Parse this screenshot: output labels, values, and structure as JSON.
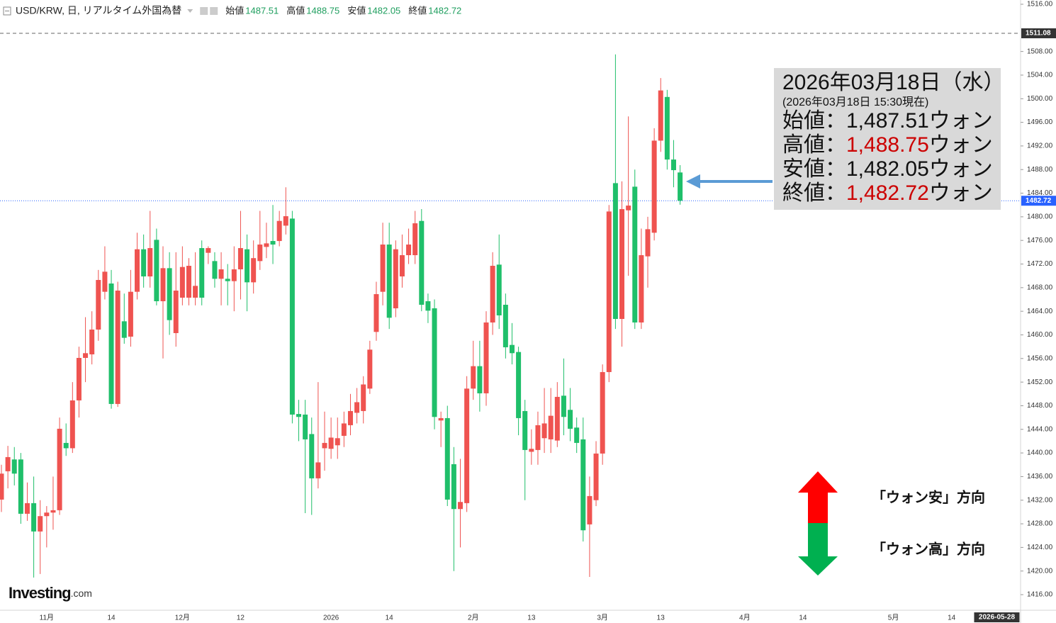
{
  "chart_data": {
    "type": "candlestick",
    "header": {
      "symbol": "USD/KRW, 日, リアルタイム外国為替",
      "ohlc": [
        {
          "label": "始値",
          "value": 1487.51
        },
        {
          "label": "高値",
          "value": 1488.75
        },
        {
          "label": "安値",
          "value": 1482.05
        },
        {
          "label": "終値",
          "value": 1482.72
        }
      ],
      "value_color": "#1e9e5e"
    },
    "up_color": "#ef5350",
    "down_color": "#1fbf6a",
    "categories": [
      null,
      null,
      null,
      null,
      null,
      null,
      null,
      "11月",
      null,
      null,
      null,
      null,
      null,
      null,
      null,
      null,
      null,
      "14",
      null,
      null,
      null,
      null,
      null,
      null,
      null,
      null,
      null,
      null,
      "12月",
      null,
      null,
      null,
      null,
      null,
      null,
      null,
      null,
      "12",
      null,
      null,
      null,
      null,
      null,
      null,
      null,
      null,
      null,
      null,
      null,
      null,
      null,
      "2026",
      null,
      null,
      null,
      null,
      null,
      null,
      null,
      null,
      "14",
      null,
      null,
      null,
      null,
      null,
      null,
      null,
      null,
      null,
      null,
      null,
      null,
      "2月",
      null,
      null,
      null,
      null,
      null,
      null,
      null,
      null,
      "13",
      null,
      null,
      null,
      null,
      null,
      null,
      null,
      null,
      null,
      null,
      "3月",
      null,
      null,
      null,
      null,
      null,
      null,
      null,
      null,
      "13",
      null,
      null,
      null,
      null,
      null,
      null,
      null,
      null,
      null,
      null,
      null,
      null,
      "4月",
      null,
      null,
      null,
      null,
      null,
      null,
      null,
      null,
      "14",
      null,
      null,
      null,
      null,
      null,
      null,
      null,
      null,
      null,
      null,
      null,
      null,
      null,
      "5月",
      null,
      null,
      null,
      null,
      null,
      null,
      null,
      null,
      "14",
      null,
      null,
      null,
      null,
      null,
      null,
      "2026-05-28",
      null,
      null,
      null
    ],
    "open": [
      1432.1,
      1436.9,
      1438.9,
      1438.9,
      1429.7,
      1431.5,
      1426.7,
      1429.3,
      1429.9,
      1430.3,
      1441.7,
      1440.8,
      1448.9,
      1456.1,
      1456.7,
      1460.9,
      1467.3,
      1468.7,
      1448.3,
      1462.3,
      1459.7,
      1467.3,
      1474.5,
      1469.9,
      1476.1,
      1465.7,
      1471.3,
      1460.3,
      1466.3,
      1466.3,
      1466.3,
      1474.7,
      1473.9,
      1472.5,
      1469.5,
      1469.5,
      1469.1,
      1471.1,
      1474.5,
      1468.9,
      1472.5,
      1474.9,
      1475.9,
      1475.9,
      1478.5,
      1479.7,
      1446.6,
      1446.5,
      1443.2,
      1435.7,
      1440.8,
      1440.7,
      1441.3,
      1442.9,
      1444.7,
      1446.8,
      1447.1,
      1450.9,
      1460.5,
      1467.3,
      1475.3,
      1464.5,
      1469.9,
      1473.5,
      1473.5,
      1479.3,
      1465.7,
      1464.5,
      1445.5,
      1445.9,
      1438.1,
      1430.5,
      1431.5,
      1450.9,
      1454.7,
      1450.1,
      1462.1,
      1471.9,
      1465.1,
      1458.3,
      1457.1,
      1447.1,
      1440.2,
      1440.5,
      1442.5,
      1442.3,
      1442.1,
      1449.7,
      1447.3,
      1444.3,
      1442.3,
      1427.9,
      1432.0,
      1439.9,
      1453.7,
      1485.7,
      1462.7,
      1481.1,
      1485.1,
      1462.1,
      1473.3,
      1477.3,
      1492.9,
      1500.3,
      1489.7,
      1487.51,
      null,
      null,
      null,
      null,
      null,
      null,
      null,
      null,
      null,
      null,
      null,
      null,
      null,
      null,
      null,
      null,
      null,
      null,
      null,
      null,
      null,
      null,
      null,
      null,
      null,
      null,
      null,
      null,
      null,
      null,
      null,
      null,
      null,
      null,
      null,
      null,
      null,
      null,
      null,
      null,
      null,
      null,
      null,
      null,
      null,
      null,
      null,
      null,
      null,
      null,
      null,
      null
    ],
    "high": [
      1438,
      1441.2,
      1441,
      1440,
      1435,
      1436,
      1432,
      1431,
      1436,
      1446,
      1445,
      1452,
      1458,
      1463,
      1464,
      1471,
      1475,
      1471,
      1469,
      1467,
      1471,
      1477.3,
      1477,
      1481,
      1478,
      1475,
      1474,
      1474,
      1475,
      1473,
      1474,
      1476,
      1475,
      1474,
      1474,
      1472,
      1475,
      1481,
      1477,
      1476,
      1481,
      1479,
      1482,
      1481,
      1485,
      1481,
      1449,
      1449,
      1446,
      1452,
      1447,
      1446,
      1446,
      1447,
      1450,
      1451,
      1453,
      1459,
      1469,
      1479,
      1479,
      1476,
      1477,
      1478,
      1481,
      1481.3,
      1467,
      1466,
      1447,
      1448,
      1441,
      1439,
      1453,
      1459,
      1459,
      1464,
      1474,
      1477,
      1467,
      1462,
      1458,
      1449,
      1444,
      1447,
      1451,
      1451,
      1452,
      1456,
      1451,
      1446,
      1446,
      1436,
      1442,
      1455,
      1482,
      1507.5,
      1486,
      1497,
      1488,
      1478,
      1480,
      1495,
      1503.5,
      1501.5,
      1493,
      1488.75,
      null,
      null,
      null,
      null,
      null,
      null,
      null,
      null,
      null,
      null,
      null,
      null,
      null,
      null,
      null,
      null,
      null,
      null,
      null,
      null,
      null,
      null,
      null,
      null,
      null,
      null,
      null,
      null,
      null,
      null,
      null,
      null,
      null,
      null,
      null,
      null,
      null,
      null,
      null,
      null,
      null,
      null,
      null,
      null,
      null,
      null,
      null,
      null,
      null,
      null,
      null,
      null
    ],
    "low": [
      1430,
      1434,
      1434.5,
      1428,
      1428.5,
      1418.9,
      1419.5,
      1424,
      1427,
      1429.5,
      1439.5,
      1440,
      1446,
      1452,
      1455,
      1459,
      1466,
      1447.5,
      1447.8,
      1458.5,
      1458,
      1466,
      1468,
      1468,
      1465,
      1456,
      1460,
      1458,
      1465,
      1465,
      1465,
      1465,
      1472,
      1468,
      1465,
      1465,
      1464,
      1466,
      1464,
      1467,
      1471,
      1473,
      1472,
      1475,
      1477,
      1445,
      1442,
      1429.8,
      1429.5,
      1434,
      1437,
      1439,
      1439,
      1441,
      1443,
      1445,
      1445,
      1450,
      1459,
      1465,
      1461,
      1463,
      1468,
      1472,
      1472,
      1464,
      1462,
      1444,
      1441,
      1431,
      1420,
      1424,
      1430,
      1449,
      1447,
      1448,
      1460,
      1461,
      1456,
      1455,
      1443,
      1432,
      1438,
      1438,
      1440,
      1440,
      1441,
      1443,
      1442,
      1440,
      1425,
      1419,
      1431,
      1438,
      1452,
      1461,
      1458,
      1470,
      1461,
      1461,
      1468,
      1476,
      1491,
      1488,
      1485,
      1482.05,
      null,
      null,
      null,
      null,
      null,
      null,
      null,
      null,
      null,
      null,
      null,
      null,
      null,
      null,
      null,
      null,
      null,
      null,
      null,
      null,
      null,
      null,
      null,
      null,
      null,
      null,
      null,
      null,
      null,
      null,
      null,
      null,
      null,
      null,
      null,
      null,
      null,
      null,
      null,
      null,
      null,
      null,
      null,
      null,
      null,
      null,
      null,
      null,
      null,
      null,
      null,
      null
    ],
    "close": [
      1436.5,
      1439.3,
      1436.5,
      1429.7,
      1431.5,
      1426.7,
      1429.3,
      1429.9,
      1430.3,
      1444.1,
      1440.8,
      1448.9,
      1456.1,
      1456.9,
      1460.9,
      1469.3,
      1470.7,
      1448.3,
      1467.5,
      1459.5,
      1467.3,
      1474.5,
      1469.9,
      1474.7,
      1465.7,
      1471.3,
      1462.5,
      1467.5,
      1471.5,
      1471.7,
      1468.3,
      1466.3,
      1474.7,
      1469.5,
      1471.1,
      1469.1,
      1471.1,
      1474.7,
      1468.9,
      1473.0,
      1475.3,
      1475.5,
      1475.3,
      1479.3,
      1480.1,
      1446.5,
      1446.1,
      1442.3,
      1435.7,
      1438.4,
      1441.7,
      1442.6,
      1442.5,
      1445.0,
      1447.1,
      1448.6,
      1451.6,
      1457.5,
      1466.9,
      1475.3,
      1462.9,
      1474.5,
      1473.5,
      1475.3,
      1478.9,
      1465.1,
      1464.1,
      1446.1,
      1445.9,
      1432.1,
      1430.5,
      1431.7,
      1450.9,
      1454.7,
      1450.1,
      1462.1,
      1471.7,
      1463.3,
      1457.9,
      1456.9,
      1445.9,
      1440.5,
      1440.7,
      1444.7,
      1445.0,
      1446.3,
      1449.5,
      1446.1,
      1444.1,
      1441.7,
      1426.9,
      1432.7,
      1439.9,
      1453.7,
      1480.9,
      1462.7,
      1481.3,
      1481.9,
      1462.1,
      1473.5,
      1477.9,
      1492.9,
      1501.4,
      1489.7,
      1487.9,
      1482.72,
      null,
      null,
      null,
      null,
      null,
      null,
      null,
      null,
      null,
      null,
      null,
      null,
      null,
      null,
      null,
      null,
      null,
      null,
      null,
      null,
      null,
      null,
      null,
      null,
      null,
      null,
      null,
      null,
      null,
      null,
      null,
      null,
      null,
      null,
      null,
      null,
      null,
      null,
      null,
      null,
      null,
      null,
      null,
      null,
      null,
      null,
      null,
      null,
      null,
      null,
      null,
      null
    ],
    "ylim": [
      1413.36,
      1516.72
    ],
    "yticks": [
      {
        "value": 1416,
        "label": "1416.00"
      },
      {
        "value": 1420,
        "label": "1420.00"
      },
      {
        "value": 1424,
        "label": "1424.00"
      },
      {
        "value": 1428,
        "label": "1428.00"
      },
      {
        "value": 1432,
        "label": "1432.00"
      },
      {
        "value": 1436,
        "label": "1436.00"
      },
      {
        "value": 1440,
        "label": "1440.00"
      },
      {
        "value": 1444,
        "label": "1444.00"
      },
      {
        "value": 1448,
        "label": "1448.00"
      },
      {
        "value": 1452,
        "label": "1452.00"
      },
      {
        "value": 1456,
        "label": "1456.00"
      },
      {
        "value": 1460,
        "label": "1460.00"
      },
      {
        "value": 1464,
        "label": "1464.00"
      },
      {
        "value": 1468,
        "label": "1468.00"
      },
      {
        "value": 1472,
        "label": "1472.00"
      },
      {
        "value": 1476,
        "label": "1476.00"
      },
      {
        "value": 1480,
        "label": "1480.00"
      },
      {
        "value": 1484,
        "label": "1484.00"
      },
      {
        "value": 1488,
        "label": "1488.00"
      },
      {
        "value": 1492,
        "label": "1492.00"
      },
      {
        "value": 1496,
        "label": "1496.00"
      },
      {
        "value": 1500,
        "label": "1500.00"
      },
      {
        "value": 1504,
        "label": "1504.00"
      },
      {
        "value": 1508,
        "label": "1508.00"
      },
      {
        "value": 1516,
        "label": "1516.00"
      }
    ],
    "last_price": 1482.72,
    "last_price_color": "#2962ff",
    "horizontal_line": 1511.08,
    "info_box": {
      "date": "2026年03月18日（水）",
      "timestamp": "(2026年03月18日 15:30現在)",
      "rows": [
        {
          "label": "始値：",
          "value": "1,487.51",
          "unit": "ウォン",
          "color": "#111111"
        },
        {
          "label": "高値：",
          "value": "1,488.75",
          "unit": "ウォン",
          "color": "#cc0000"
        },
        {
          "label": "安値：",
          "value": "1,482.05",
          "unit": "ウォン",
          "color": "#111111"
        },
        {
          "label": "終値：",
          "value": "1,482.72",
          "unit": "ウォン",
          "color": "#cc0000"
        }
      ]
    },
    "annotations": {
      "up": "「ウォン安」方向",
      "down": "「ウォン高」方向"
    },
    "logo": "Investing",
    "logo_suffix": ".com"
  }
}
